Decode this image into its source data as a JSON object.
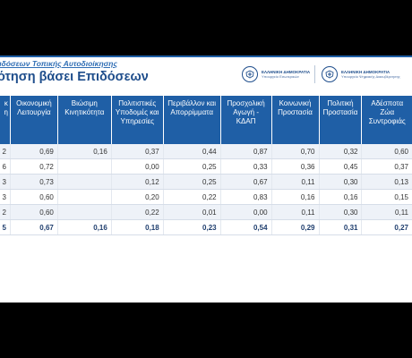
{
  "header": {
    "subtitle": "διδόσεων Τοπικής Αυτοδιοίκησης",
    "title": "ότηση βάσει Επιδόσεων"
  },
  "logos": [
    {
      "line1": "ΕΛΛΗΝΙΚΗ ΔΗΜΟΚΡΑΤΙΑ",
      "line2": "Υπουργείο Εσωτερικών",
      "icon": "greek-emblem-icon"
    },
    {
      "line1": "ΕΛΛΗΝΙΚΗ ΔΗΜΟΚΡΑΤΙΑ",
      "line2": "Υπουργείο Ψηφιακής Διακυβέρνησης",
      "icon": "greek-emblem-icon"
    }
  ],
  "colors": {
    "header_bg": "#1f5fa6",
    "title": "#1f4e8c",
    "stripe": "#eef2f8"
  },
  "table": {
    "columns": [
      "κ\nη",
      "Οικονομική Λειτουργία",
      "Βιώσιμη Κινητικότητα",
      "Πολιτιστικές Υποδομές και Υπηρεσίες",
      "Περιβάλλον και Απορρίμματα",
      "Προσχολική Αγωγή - ΚΔΑΠ",
      "Κοινωνική Προστασία",
      "Πολιτική Προστασία",
      "Αδέσποτα Ζώα Συντροφιάς"
    ],
    "rows": [
      [
        "2",
        "0,69",
        "0,16",
        "0,37",
        "0,44",
        "0,87",
        "0,70",
        "0,32",
        "0,60"
      ],
      [
        "6",
        "0,72",
        "",
        "0,00",
        "0,25",
        "0,33",
        "0,36",
        "0,45",
        "0,37"
      ],
      [
        "3",
        "0,73",
        "",
        "0,12",
        "0,25",
        "0,67",
        "0,11",
        "0,30",
        "0,13"
      ],
      [
        "3",
        "0,60",
        "",
        "0,20",
        "0,22",
        "0,83",
        "0,16",
        "0,16",
        "0,15"
      ],
      [
        "2",
        "0,60",
        "",
        "0,22",
        "0,01",
        "0,00",
        "0,11",
        "0,30",
        "0,11"
      ]
    ],
    "total": [
      "5",
      "0,67",
      "0,16",
      "0,18",
      "0,23",
      "0,54",
      "0,29",
      "0,31",
      "0,27"
    ]
  }
}
